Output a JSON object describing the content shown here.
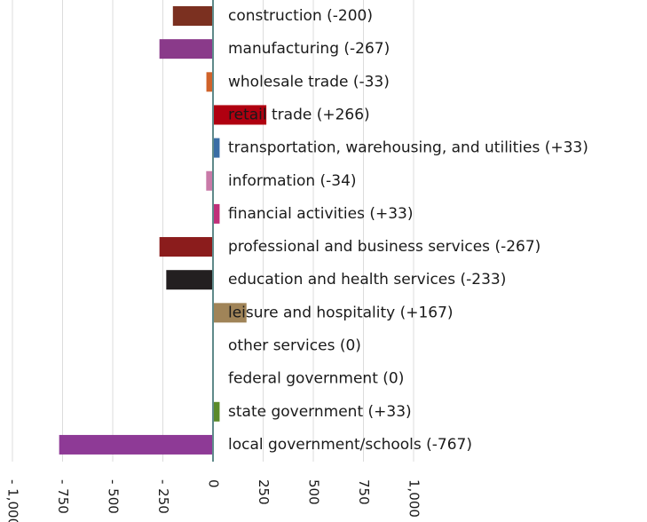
{
  "chart_data": {
    "type": "barh",
    "categories": [
      "construction (-200)",
      "manufacturing (-267)",
      "wholesale trade (-33)",
      "retail trade (+266)",
      "transportation, warehousing, and utilities (+33)",
      "information (-34)",
      "financial activities (+33)",
      "professional and business services (-267)",
      "education and health services (-233)",
      "leisure and hospitality (+167)",
      "other services (0)",
      "federal government (0)",
      "state government (+33)",
      "local government/schools (-767)"
    ],
    "values": [
      -200,
      -267,
      -33,
      266,
      33,
      -34,
      33,
      -267,
      -233,
      167,
      0,
      0,
      33,
      -767
    ],
    "colors": [
      "#7b3020",
      "#8a3a8a",
      "#d0622a",
      "#b00010",
      "#3a6ea5",
      "#c97aa8",
      "#c0307a",
      "#8b1c1c",
      "#231f20",
      "#a08458",
      "#888888",
      "#888888",
      "#5a8a2a",
      "#8e3a96"
    ],
    "xlim": [
      -1000,
      1000
    ],
    "xticks": [
      {
        "value": -1000,
        "label": "- 1,000"
      },
      {
        "value": -750,
        "label": "- 750"
      },
      {
        "value": -500,
        "label": "- 500"
      },
      {
        "value": -250,
        "label": "- 250"
      },
      0,
      250,
      500,
      750,
      {
        "value": 1000,
        "label": "1,000"
      }
    ],
    "grid": true
  }
}
